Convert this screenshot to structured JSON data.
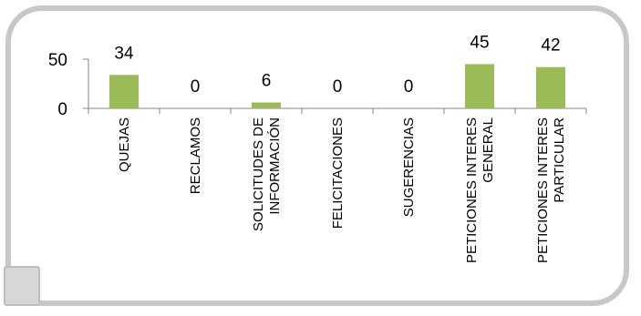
{
  "chart_data": {
    "type": "bar",
    "title": "",
    "xlabel": "",
    "ylabel": "",
    "categories": [
      [
        "QUEJAS"
      ],
      [
        "RECLAMOS"
      ],
      [
        "SOLICITUDES DE",
        "INFORMACIÓN"
      ],
      [
        "FELICITACIONES"
      ],
      [
        "SUGERENCIAS"
      ],
      [
        "PETICIONES INTERES",
        "GENERAL"
      ],
      [
        "PETICIONES INTERES",
        "PARTICULAR"
      ]
    ],
    "series": [
      {
        "values": [
          34,
          0,
          6,
          0,
          0,
          45,
          42
        ],
        "color": "#9bbb59"
      }
    ],
    "data_labels": [
      "34",
      "0",
      "6",
      "0",
      "0",
      "45",
      "42"
    ],
    "y_ticks": [
      0,
      50
    ],
    "ylim": [
      0,
      50
    ],
    "grid": false,
    "legend": "none"
  }
}
